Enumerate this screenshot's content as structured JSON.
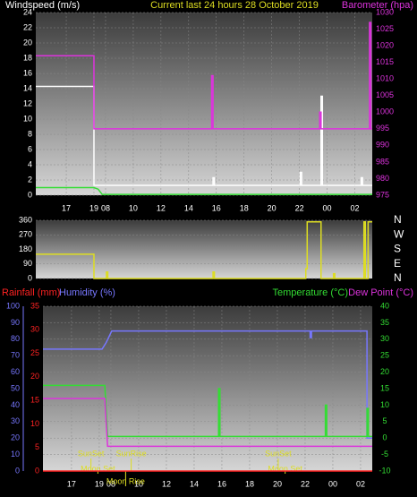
{
  "chart_data": [
    {
      "type": "line",
      "title": "Current last 24 hours 28 October 2019",
      "ylabel": "Windspeed (m/s)",
      "y2label": "Barometer (hpa)",
      "xlim": [
        14.8,
        39.1
      ],
      "xticks": [
        {
          "value": 17,
          "label": "17"
        },
        {
          "value": 19,
          "label": "19"
        },
        {
          "value": 19.84,
          "label": "08"
        },
        {
          "value": 21.84,
          "label": "10"
        },
        {
          "value": 23.84,
          "label": "12"
        },
        {
          "value": 25.84,
          "label": "14"
        },
        {
          "value": 27.84,
          "label": "16"
        },
        {
          "value": 29.84,
          "label": "18"
        },
        {
          "value": 31.84,
          "label": "20"
        },
        {
          "value": 33.84,
          "label": "22"
        },
        {
          "value": 35.84,
          "label": "00"
        },
        {
          "value": 37.84,
          "label": "02"
        }
      ],
      "ylim": [
        0,
        24
      ],
      "yticks": [
        0,
        2,
        4,
        6,
        8,
        10,
        12,
        14,
        16,
        18,
        20,
        22,
        24
      ],
      "y2lim": [
        975,
        1030
      ],
      "y2ticks": [
        975,
        980,
        985,
        990,
        995,
        1000,
        1005,
        1010,
        1015,
        1020,
        1025,
        1030
      ],
      "grid": true,
      "series": [
        {
          "color": "#ffffff",
          "x": [
            14.8,
            19,
            19,
            27.6,
            27.6,
            27.7,
            27.7,
            33.9,
            33.9,
            34,
            34,
            35.4,
            35.4,
            35.5,
            35.5,
            38.3,
            38.3,
            38.4,
            38.4,
            39.1
          ],
          "values": [
            14.3,
            14.3,
            1.3,
            1.3,
            2.3,
            2.3,
            1.3,
            1.3,
            3,
            3,
            1.3,
            1.3,
            13,
            13,
            1.3,
            1.3,
            2.3,
            2.3,
            1.3,
            1.3
          ]
        },
        {
          "color": "#33dd33",
          "x": [
            14.8,
            19,
            19.3,
            19.6,
            39.1
          ],
          "values": [
            1,
            1,
            0.8,
            0.1,
            0.1
          ]
        },
        {
          "color": "#dd33dd",
          "axis": "y2",
          "x": [
            14.8,
            19,
            19,
            27.5,
            27.5,
            27.6,
            27.6,
            35.3,
            35.3,
            35.4,
            35.4,
            38.9,
            38.9,
            39,
            39,
            39.1
          ],
          "values": [
            1017,
            1017,
            995,
            995,
            1011,
            1011,
            995,
            995,
            1000,
            1000,
            995,
            995,
            1027,
            1027,
            995,
            995
          ]
        }
      ]
    },
    {
      "type": "line",
      "xlim": [
        14.8,
        39.1
      ],
      "ylim": [
        0,
        360
      ],
      "yticks": [
        0,
        90,
        180,
        270,
        360
      ],
      "y2lim": [
        0,
        360
      ],
      "y2ticks": [
        {
          "value": 360,
          "label": "N"
        },
        {
          "value": 270,
          "label": "W"
        },
        {
          "value": 180,
          "label": "S"
        },
        {
          "value": 90,
          "label": "E"
        },
        {
          "value": 0,
          "label": "N"
        }
      ],
      "grid": true,
      "series": [
        {
          "color": "#dddd22",
          "x": [
            14.8,
            19,
            19,
            19.9,
            19.9,
            20,
            20,
            27.6,
            27.6,
            27.7,
            27.7,
            34.3,
            34.3,
            34.4,
            34.4,
            35.4,
            35.4,
            36.3,
            36.3,
            36.4,
            36.4,
            38.5,
            38.5,
            38.6,
            38.6,
            38.8,
            38.8,
            39.1
          ],
          "values": [
            150,
            150,
            0,
            0,
            40,
            40,
            0,
            0,
            40,
            40,
            0,
            0,
            60,
            60,
            350,
            350,
            0,
            0,
            30,
            30,
            0,
            0,
            350,
            350,
            0,
            0,
            350,
            350
          ]
        }
      ]
    },
    {
      "type": "line",
      "ylabel": "Humidity (%)",
      "y3label": "Rainfall (mm)",
      "y2label": "Temperature (°C)",
      "y4label": "Dew Point (°C)",
      "xlim": [
        14.94,
        38.68
      ],
      "xticks": [
        {
          "value": 17,
          "label": "17"
        },
        {
          "value": 19,
          "label": "19"
        },
        {
          "value": 19.84,
          "label": "08"
        },
        {
          "value": 21.84,
          "label": "10"
        },
        {
          "value": 23.84,
          "label": "12"
        },
        {
          "value": 25.84,
          "label": "14"
        },
        {
          "value": 27.84,
          "label": "16"
        },
        {
          "value": 29.84,
          "label": "18"
        },
        {
          "value": 31.84,
          "label": "20"
        },
        {
          "value": 33.84,
          "label": "22"
        },
        {
          "value": 35.84,
          "label": "00"
        },
        {
          "value": 37.84,
          "label": "02"
        }
      ],
      "ylim": [
        0,
        100
      ],
      "yticks": [
        0,
        10,
        20,
        30,
        40,
        50,
        60,
        70,
        80,
        90,
        100
      ],
      "y3lim": [
        0,
        35
      ],
      "y3ticks": [
        0,
        5,
        10,
        15,
        20,
        25,
        30,
        35
      ],
      "y2lim": [
        -10,
        40
      ],
      "y2ticks": [
        -10,
        -5,
        0,
        5,
        10,
        15,
        20,
        25,
        30,
        35,
        40
      ],
      "grid": true,
      "series": [
        {
          "color": "#7777ff",
          "x": [
            14.94,
            19.2,
            19.5,
            19.9,
            34.2,
            34.2,
            34.3,
            34.3,
            38.3,
            38.3,
            38.68
          ],
          "values": [
            74,
            74,
            78,
            85,
            85,
            81,
            81,
            85,
            85,
            20,
            20
          ]
        },
        {
          "color": "#33dd33",
          "axis": "y2",
          "x": [
            14.94,
            19.4,
            19.6,
            27.6,
            27.6,
            27.7,
            27.7,
            35.3,
            35.3,
            35.4,
            35.4,
            38.3,
            38.3,
            38.4,
            38.4,
            38.68
          ],
          "values": [
            16,
            16,
            0.5,
            0.5,
            15,
            15,
            0.5,
            0.5,
            10,
            10,
            0.5,
            0.5,
            9,
            9,
            0.5,
            0.5
          ]
        },
        {
          "color": "#dd33dd",
          "axis": "y2",
          "x": [
            14.94,
            19.4,
            19.6,
            38.68
          ],
          "values": [
            12,
            12,
            -2.5,
            -2.5
          ]
        },
        {
          "color": "#ff2222",
          "axis": "y3",
          "x": [
            14.94,
            38.68
          ],
          "values": [
            0,
            0
          ]
        }
      ],
      "annotations": [
        {
          "text": "SunSet",
          "x": 18.4
        },
        {
          "text": "SunRise",
          "x": 21.3
        },
        {
          "text": "SunSet",
          "x": 31.9
        },
        {
          "text": "Moon Set",
          "x": 18.9
        },
        {
          "text": "Moon Set",
          "x": 32.4
        },
        {
          "text": "Moon Rise",
          "x": 20.9
        }
      ]
    }
  ]
}
